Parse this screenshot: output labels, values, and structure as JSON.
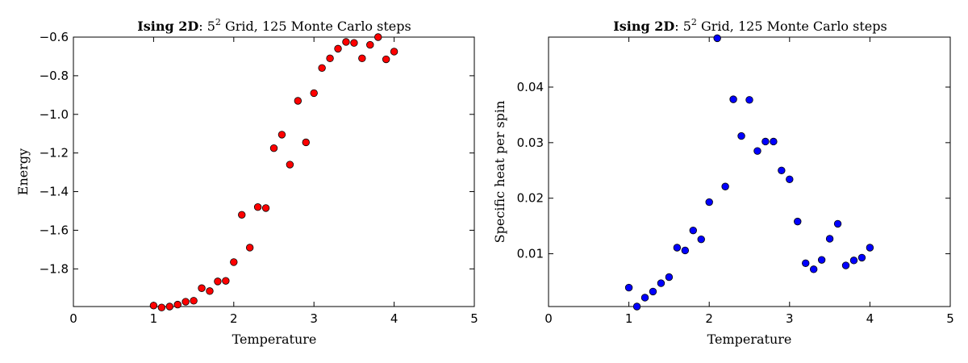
{
  "chart_data": [
    {
      "type": "scatter",
      "title": {
        "bold": "Ising 2D",
        "after_bold": ": 5",
        "superscript": "2",
        "rest": " Grid, 125 Monte Carlo steps"
      },
      "xlabel": "Temperature",
      "ylabel": "Energy",
      "xlim": [
        0,
        5
      ],
      "ylim": [
        -1.995,
        -0.6
      ],
      "xticks": [
        0,
        1,
        2,
        3,
        4,
        5
      ],
      "xtick_labels": [
        "0",
        "1",
        "2",
        "3",
        "4",
        "5"
      ],
      "yticks": [
        -0.6,
        -0.8,
        -1.0,
        -1.2,
        -1.4,
        -1.6,
        -1.8
      ],
      "ytick_labels": [
        "−0.6",
        "−0.8",
        "−1.0",
        "−1.2",
        "−1.4",
        "−1.6",
        "−1.8"
      ],
      "marker_color": "#ff0000",
      "series": [
        {
          "x": [
            1.0,
            1.1,
            1.2,
            1.3,
            1.4,
            1.5,
            1.6,
            1.7,
            1.8,
            1.9,
            2.0,
            2.1,
            2.2,
            2.3,
            2.4,
            2.5,
            2.6,
            2.7,
            2.8,
            2.9,
            3.0,
            3.1,
            3.2,
            3.3,
            3.4,
            3.5,
            3.6,
            3.7,
            3.8,
            3.9,
            4.0
          ],
          "y": [
            -1.99,
            -2.0,
            -1.995,
            -1.985,
            -1.97,
            -1.965,
            -1.9,
            -1.915,
            -1.865,
            -1.862,
            -1.765,
            -1.52,
            -1.69,
            -1.48,
            -1.485,
            -1.175,
            -1.105,
            -1.26,
            -0.93,
            -1.145,
            -0.89,
            -0.76,
            -0.71,
            -0.66,
            -0.625,
            -0.63,
            -0.71,
            -0.64,
            -0.6,
            -0.715,
            -0.675
          ]
        }
      ]
    },
    {
      "type": "scatter",
      "title": {
        "bold": "Ising 2D",
        "after_bold": ": 5",
        "superscript": "2",
        "rest": " Grid, 125 Monte Carlo steps"
      },
      "xlabel": "Temperature",
      "ylabel": "Specific heat per spin",
      "xlim": [
        0,
        5
      ],
      "ylim": [
        0.0005,
        0.049
      ],
      "xticks": [
        0,
        1,
        2,
        3,
        4,
        5
      ],
      "xtick_labels": [
        "0",
        "1",
        "2",
        "3",
        "4",
        "5"
      ],
      "yticks": [
        0.01,
        0.02,
        0.03,
        0.04
      ],
      "ytick_labels": [
        "0.01",
        "0.02",
        "0.03",
        "0.04"
      ],
      "marker_color": "#0000ff",
      "series": [
        {
          "x": [
            1.0,
            1.1,
            1.2,
            1.3,
            1.4,
            1.5,
            1.6,
            1.7,
            1.8,
            1.9,
            2.0,
            2.1,
            2.2,
            2.3,
            2.4,
            2.5,
            2.6,
            2.7,
            2.8,
            2.9,
            3.0,
            3.1,
            3.2,
            3.3,
            3.4,
            3.5,
            3.6,
            3.7,
            3.8,
            3.9,
            4.0
          ],
          "y": [
            0.0039,
            0.0005,
            0.0021,
            0.0032,
            0.0047,
            0.0058,
            0.0111,
            0.0106,
            0.0142,
            0.0126,
            0.0193,
            0.0488,
            0.0221,
            0.0378,
            0.0312,
            0.0377,
            0.0285,
            0.0302,
            0.0302,
            0.025,
            0.0234,
            0.0158,
            0.0083,
            0.0072,
            0.0089,
            0.0127,
            0.0154,
            0.0079,
            0.0088,
            0.0093,
            0.0111
          ]
        }
      ]
    }
  ]
}
